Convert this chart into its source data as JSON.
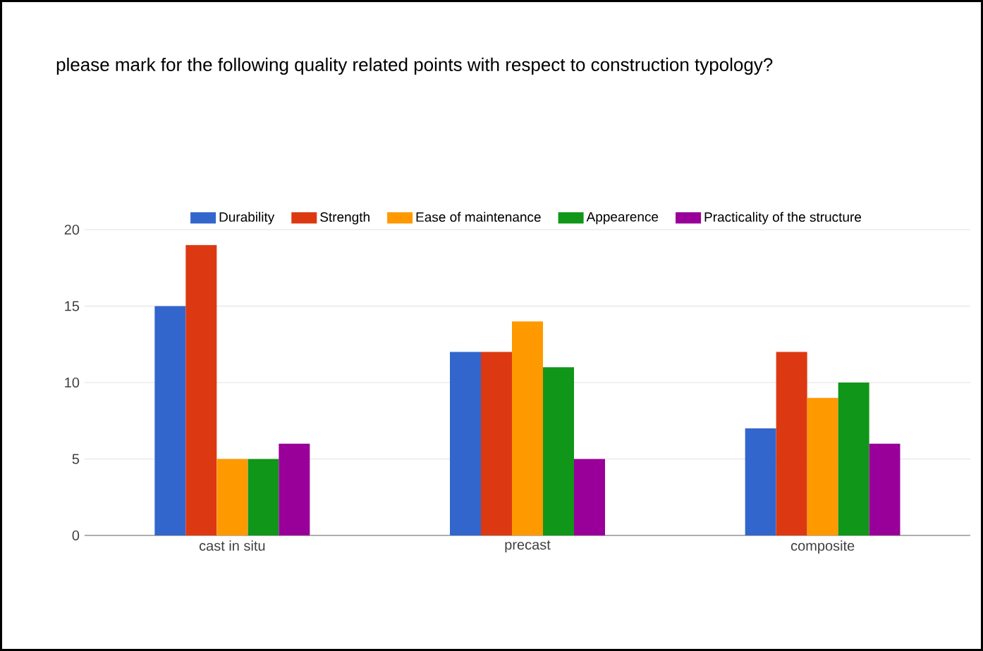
{
  "chart_data": {
    "type": "bar",
    "title": "please mark for the following quality related points with respect to construction typology?",
    "categories": [
      "cast in situ",
      "precast",
      "composite"
    ],
    "series": [
      {
        "name": "Durability",
        "color": "#3366cc",
        "values": [
          15,
          12,
          7
        ]
      },
      {
        "name": "Strength",
        "color": "#dc3912",
        "values": [
          19,
          12,
          12
        ]
      },
      {
        "name": "Ease of maintenance",
        "color": "#ff9900",
        "values": [
          5,
          14,
          9
        ]
      },
      {
        "name": "Appearence",
        "color": "#109618",
        "values": [
          5,
          11,
          10
        ]
      },
      {
        "name": "Practicality of the structure",
        "color": "#990099",
        "values": [
          6,
          5,
          6
        ]
      }
    ],
    "ylim": [
      0,
      20
    ],
    "yticks": [
      0,
      5,
      10,
      15,
      20
    ],
    "grid": "y",
    "legend": "top"
  }
}
